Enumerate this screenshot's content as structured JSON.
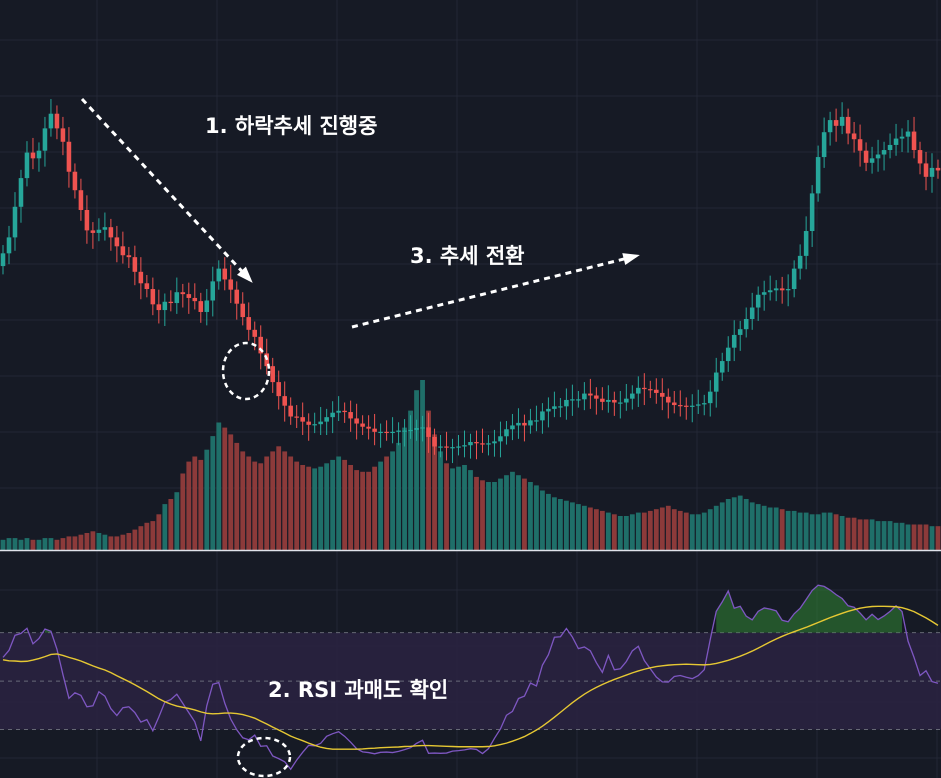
{
  "annotations": {
    "downtrend": "1. 하락추세 진행중",
    "rsi_oversold": "2. RSI 과매도 확인",
    "trend_reversal": "3. 추세 전환"
  },
  "colors": {
    "background": "#161a25",
    "grid": "#232735",
    "up": "#26a69a",
    "down": "#ef5350",
    "volume_up": "#1f6f69",
    "volume_down": "#8c3a3a",
    "rsi_line": "#7e57c2",
    "rsi_ma": "#e6c833",
    "rsi_band": "#2a2342",
    "annotation": "#ffffff"
  },
  "chart_data": {
    "type": "candlestick",
    "price": {
      "close": [
        138.4,
        140.9,
        145.7,
        150.2,
        154.2,
        153.3,
        154.5,
        158.0,
        160.3,
        158.0,
        155.9,
        151.2,
        148.3,
        145.2,
        142.0,
        141.6,
        142.1,
        142.5,
        140.9,
        139.5,
        138.1,
        137.8,
        135.5,
        133.7,
        132.8,
        130.4,
        129.5,
        130.8,
        130.6,
        132.3,
        132.0,
        131.4,
        130.9,
        129.2,
        131.0,
        134.0,
        136.0,
        134.3,
        132.7,
        130.5,
        128.4,
        126.4,
        125.3,
        122.7,
        120.7,
        118.2,
        116.0,
        114.5,
        112.8,
        112.7,
        112.0,
        111.5,
        111.6,
        112.0,
        112.7,
        113.4,
        113.7,
        113.5,
        112.5,
        111.7,
        111.2,
        110.9,
        110.4,
        110.4,
        110.3,
        110.4,
        110.6,
        110.6,
        110.7,
        111.0,
        111.1,
        109.6,
        108.1,
        108.1,
        108.0,
        108.0,
        108.1,
        108.3,
        108.8,
        108.6,
        108.4,
        108.6,
        108.9,
        109.7,
        110.8,
        111.4,
        111.8,
        111.4,
        112.2,
        112.2,
        113.6,
        114.0,
        114.4,
        114.4,
        115.4,
        115.5,
        115.5,
        116.4,
        116.1,
        115.6,
        115.1,
        115.4,
        115.0,
        115.0,
        115.6,
        116.4,
        117.3,
        117.1,
        117.0,
        116.5,
        115.9,
        115.0,
        114.6,
        114.5,
        114.4,
        114.5,
        114.7,
        114.9,
        116.7,
        119.7,
        121.5,
        123.6,
        125.6,
        126.5,
        128.1,
        129.9,
        131.9,
        132.3,
        132.6,
        132.9,
        132.6,
        132.8,
        136.0,
        138.0,
        141.9,
        147.8,
        153.5,
        157.4,
        159.3,
        158.4,
        159.8,
        157.2,
        156.3,
        154.5,
        152.6,
        153.3,
        153.9,
        154.6,
        155.4,
        156.4,
        156.7,
        157.5,
        154.6,
        152.5,
        150.4,
        151.8,
        151.4
      ],
      "ylim": [
        95,
        175
      ]
    },
    "volume": [
      6,
      7,
      7,
      6,
      7,
      6,
      6,
      7,
      7,
      6,
      7,
      8,
      8,
      9,
      10,
      11,
      10,
      9,
      8,
      8,
      9,
      10,
      12,
      14,
      16,
      17,
      21,
      27,
      30,
      34,
      45,
      52,
      55,
      53,
      59,
      67,
      75,
      72,
      68,
      63,
      58,
      55,
      52,
      51,
      55,
      58,
      61,
      58,
      55,
      52,
      50,
      49,
      48,
      49,
      51,
      53,
      55,
      53,
      50,
      47,
      46,
      46,
      49,
      52,
      55,
      58,
      63,
      72,
      82,
      94,
      100,
      82,
      68,
      58,
      51,
      48,
      49,
      50,
      47,
      43,
      41,
      40,
      40,
      42,
      44,
      46,
      44,
      42,
      40,
      38,
      35,
      33,
      31,
      30,
      29,
      28,
      27,
      26,
      25,
      24,
      23,
      22,
      21,
      20,
      20,
      21,
      22,
      22,
      23,
      24,
      25,
      26,
      24,
      23,
      22,
      21,
      21,
      22,
      24,
      26,
      28,
      30,
      31,
      32,
      30,
      28,
      27,
      26,
      25,
      25,
      24,
      23,
      23,
      22,
      22,
      21,
      21,
      22,
      22,
      21,
      20,
      19,
      19,
      18,
      18,
      18,
      17,
      17,
      17,
      16,
      16,
      15,
      15,
      15,
      15,
      14,
      14,
      13,
      13,
      12,
      12,
      12,
      12
    ],
    "rsi": {
      "values": [
        59.8,
        62.7,
        68.9,
        69.7,
        71.8,
        65.4,
        67.6,
        71.5,
        70.6,
        63.2,
        52.7,
        42.9,
        45.2,
        44.1,
        39.4,
        39.8,
        45.6,
        43.8,
        38.6,
        35.8,
        39.0,
        39.4,
        37.0,
        33.1,
        34.1,
        29.5,
        35.2,
        41.3,
        42.4,
        44.6,
        40.8,
        37.0,
        33.2,
        25.3,
        39.8,
        48.7,
        49.4,
        40.9,
        34.3,
        29.9,
        26.6,
        25.8,
        27.7,
        23.1,
        23.3,
        19.1,
        18.0,
        16.7,
        13.6,
        17.4,
        20.6,
        23.5,
        23.3,
        24.3,
        27.2,
        28.3,
        29.1,
        27.2,
        24.8,
        22.1,
        20.8,
        20.5,
        20.0,
        20.6,
        20.7,
        20.5,
        21.0,
        21.7,
        22.5,
        24.3,
        25.6,
        20.2,
        20.3,
        20.2,
        20.3,
        21.1,
        21.3,
        21.6,
        22.1,
        21.8,
        20.1,
        22.1,
        26.4,
        30.3,
        35.9,
        37.5,
        42.8,
        43.8,
        49.2,
        48.0,
        56.6,
        60.9,
        68.1,
        68.3,
        71.7,
        68.2,
        63.4,
        64.1,
        62.5,
        57.6,
        53.6,
        60.6,
        54.7,
        55.1,
        58.1,
        62.5,
        64.4,
        58.5,
        55.1,
        51.7,
        49.7,
        49.6,
        51.9,
        52.3,
        51.6,
        51.0,
        52.3,
        54.7,
        67.2,
        78.8,
        82.7,
        87.2,
        80.1,
        80.9,
        76.8,
        75.3,
        78.8,
        80.2,
        79.7,
        79.0,
        75.1,
        74.5,
        77.8,
        80.1,
        83.7,
        87.4,
        89.6,
        89.1,
        87.6,
        85.7,
        84.1,
        81.1,
        80.5,
        78.1,
        75.3,
        77.6,
        75.4,
        76.9,
        78.8,
        81.1,
        78.7,
        66.5,
        59.8,
        52.3,
        54.3,
        49.8,
        49.1
      ],
      "ma": [
        58.8,
        58.4,
        58.3,
        58.1,
        58.2,
        58.7,
        59.3,
        60.1,
        61.0,
        61.2,
        60.6,
        59.8,
        59.1,
        58.3,
        57.3,
        56.3,
        55.4,
        54.6,
        53.5,
        52.2,
        51.0,
        49.8,
        48.5,
        47.1,
        45.7,
        44.2,
        42.7,
        41.5,
        40.5,
        39.7,
        39.2,
        38.7,
        38.1,
        37.3,
        36.7,
        36.5,
        36.6,
        36.8,
        36.8,
        36.6,
        36.2,
        35.5,
        34.7,
        33.5,
        32.3,
        31.0,
        29.8,
        28.6,
        27.3,
        26.3,
        25.4,
        24.4,
        23.5,
        22.7,
        22.2,
        21.9,
        21.9,
        21.9,
        21.9,
        21.9,
        22.0,
        22.2,
        22.3,
        22.5,
        22.6,
        22.7,
        22.8,
        23.0,
        23.1,
        23.3,
        23.4,
        23.4,
        23.3,
        23.2,
        23.1,
        23.0,
        22.9,
        22.9,
        22.9,
        22.9,
        22.9,
        23.0,
        23.3,
        23.8,
        24.4,
        25.2,
        26.1,
        27.1,
        28.4,
        29.8,
        31.4,
        33.2,
        35.1,
        37.1,
        39.1,
        41.1,
        42.9,
        44.6,
        46.1,
        47.4,
        48.6,
        49.7,
        50.7,
        51.6,
        52.5,
        53.4,
        54.2,
        54.9,
        55.5,
        56.0,
        56.3,
        56.6,
        56.8,
        56.9,
        57.0,
        56.9,
        56.8,
        56.7,
        56.9,
        57.3,
        57.9,
        58.6,
        59.4,
        60.3,
        61.3,
        62.4,
        63.6,
        64.9,
        66.2,
        67.4,
        68.5,
        69.5,
        70.4,
        71.3,
        72.2,
        73.2,
        74.2,
        75.2,
        76.2,
        77.1,
        78.0,
        78.8,
        79.5,
        80.1,
        80.5,
        80.8,
        80.9,
        80.9,
        80.8,
        80.7,
        80.3,
        79.6,
        78.7,
        77.4,
        76.1,
        74.6,
        73.0
      ],
      "ylim": [
        10,
        100
      ],
      "levels": [
        70,
        50,
        30
      ]
    },
    "grid": true
  }
}
